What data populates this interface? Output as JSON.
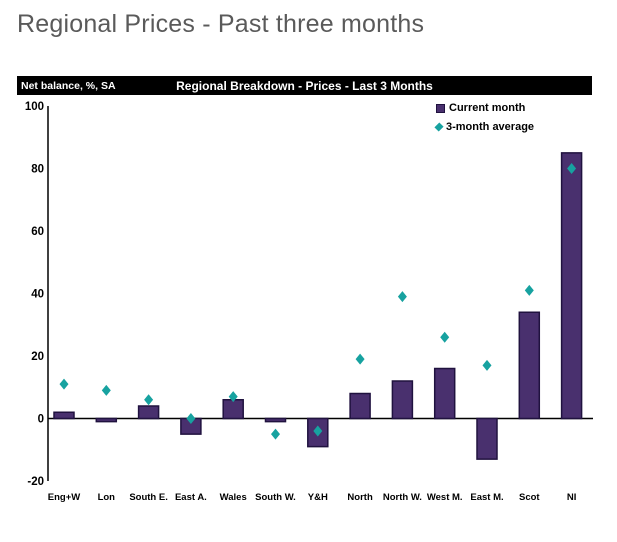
{
  "page": {
    "title": "Regional Prices - Past three months"
  },
  "chart_header": {
    "left_label": "Net balance, %, SA",
    "title": "Regional Breakdown - Prices - Last 3 Months"
  },
  "colors": {
    "bar_fill": "#49306e",
    "bar_border": "#20123f",
    "diamond": "#17a2a0",
    "page_title_text": "#5a5a5a",
    "header_bg": "#000000",
    "header_text": "#ffffff",
    "axis": "#000000"
  },
  "chart_data": {
    "type": "bar",
    "title": "Regional Breakdown - Prices - Last 3 Months",
    "ylabel": "Net balance, %, SA",
    "categories": [
      "Eng+W",
      "Lon",
      "South E.",
      "East A.",
      "Wales",
      "South W.",
      "Y&H",
      "North",
      "North W.",
      "West M.",
      "East M.",
      "Scot",
      "NI"
    ],
    "series": [
      {
        "name": "Current month",
        "type": "bar",
        "values": [
          2,
          -1,
          4,
          -5,
          6,
          -1,
          -9,
          8,
          12,
          16,
          -13,
          34,
          85
        ]
      },
      {
        "name": "3-month average",
        "type": "diamond-marker",
        "values": [
          11,
          9,
          6,
          0,
          7,
          -5,
          -4,
          19,
          39,
          26,
          17,
          41,
          80
        ]
      }
    ],
    "ylim": [
      -20,
      100
    ],
    "ytick_step": 20,
    "grid": false,
    "legend_position": "top-right"
  }
}
